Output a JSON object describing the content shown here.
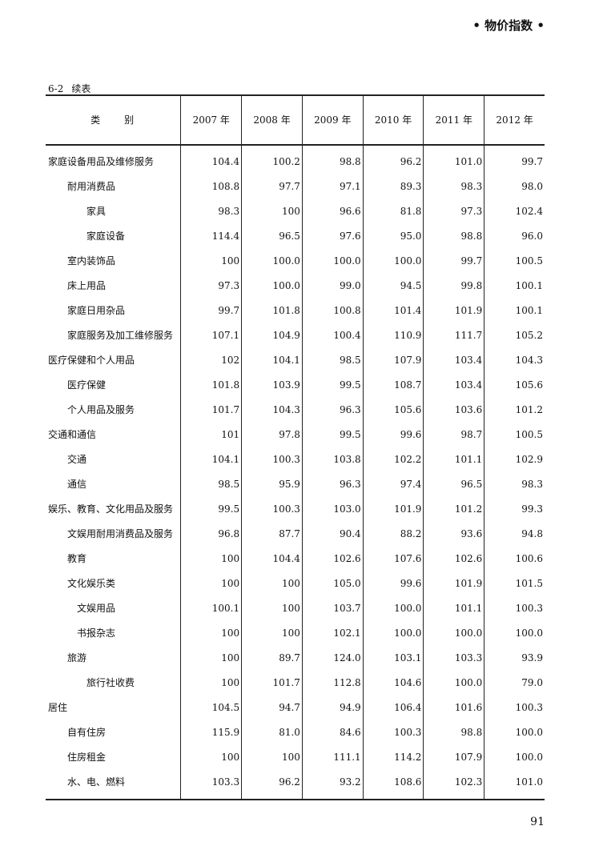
{
  "running_head": "•  物价指数  •",
  "table_number": "6-2",
  "table_continued": "续表",
  "header": {
    "category": "类　　别",
    "years": [
      "2007 年",
      "2008 年",
      "2009 年",
      "2010 年",
      "2011 年",
      "2012 年"
    ]
  },
  "rows": [
    {
      "name": "家庭设备用品及维修服务",
      "level": 0,
      "values": [
        "104.4",
        "100.2",
        "98.8",
        "96.2",
        "101.0",
        "99.7"
      ]
    },
    {
      "name": "耐用消费品",
      "level": 1,
      "values": [
        "108.8",
        "97.7",
        "97.1",
        "89.3",
        "98.3",
        "98.0"
      ]
    },
    {
      "name": "家具",
      "level": 2,
      "values": [
        "98.3",
        "100",
        "96.6",
        "81.8",
        "97.3",
        "102.4"
      ]
    },
    {
      "name": "家庭设备",
      "level": 2,
      "values": [
        "114.4",
        "96.5",
        "97.6",
        "95.0",
        "98.8",
        "96.0"
      ]
    },
    {
      "name": "室内装饰品",
      "level": 1,
      "values": [
        "100",
        "100.0",
        "100.0",
        "100.0",
        "99.7",
        "100.5"
      ]
    },
    {
      "name": "床上用品",
      "level": 1,
      "values": [
        "97.3",
        "100.0",
        "99.0",
        "94.5",
        "99.8",
        "100.1"
      ]
    },
    {
      "name": "家庭日用杂品",
      "level": 1,
      "values": [
        "99.7",
        "101.8",
        "100.8",
        "101.4",
        "101.9",
        "100.1"
      ]
    },
    {
      "name": "家庭服务及加工维修服务",
      "level": 1,
      "values": [
        "107.1",
        "104.9",
        "100.4",
        "110.9",
        "111.7",
        "105.2"
      ]
    },
    {
      "name": "医疗保健和个人用品",
      "level": 0,
      "values": [
        "102",
        "104.1",
        "98.5",
        "107.9",
        "103.4",
        "104.3"
      ]
    },
    {
      "name": "医疗保健",
      "level": 1,
      "values": [
        "101.8",
        "103.9",
        "99.5",
        "108.7",
        "103.4",
        "105.6"
      ]
    },
    {
      "name": "个人用品及服务",
      "level": 1,
      "values": [
        "101.7",
        "104.3",
        "96.3",
        "105.6",
        "103.6",
        "101.2"
      ]
    },
    {
      "name": "交通和通信",
      "level": 0,
      "values": [
        "101",
        "97.8",
        "99.5",
        "99.6",
        "98.7",
        "100.5"
      ]
    },
    {
      "name": "交通",
      "level": 1,
      "values": [
        "104.1",
        "100.3",
        "103.8",
        "102.2",
        "101.1",
        "102.9"
      ]
    },
    {
      "name": "通信",
      "level": 1,
      "values": [
        "98.5",
        "95.9",
        "96.3",
        "97.4",
        "96.5",
        "98.3"
      ]
    },
    {
      "name": "娱乐、教育、文化用品及服务",
      "level": 0,
      "values": [
        "99.5",
        "100.3",
        "103.0",
        "101.9",
        "101.2",
        "99.3"
      ]
    },
    {
      "name": "文娱用耐用消费品及服务",
      "level": 1,
      "values": [
        "96.8",
        "87.7",
        "90.4",
        "88.2",
        "93.6",
        "94.8"
      ]
    },
    {
      "name": "教育",
      "level": 1,
      "values": [
        "100",
        "104.4",
        "102.6",
        "107.6",
        "102.6",
        "100.6"
      ]
    },
    {
      "name": "文化娱乐类",
      "level": 1,
      "values": [
        "100",
        "100",
        "105.0",
        "99.6",
        "101.9",
        "101.5"
      ]
    },
    {
      "name": "文娱用品",
      "level": 15,
      "values": [
        "100.1",
        "100",
        "103.7",
        "100.0",
        "101.1",
        "100.3"
      ]
    },
    {
      "name": "书报杂志",
      "level": 15,
      "values": [
        "100",
        "100",
        "102.1",
        "100.0",
        "100.0",
        "100.0"
      ]
    },
    {
      "name": "旅游",
      "level": 1,
      "values": [
        "100",
        "89.7",
        "124.0",
        "103.1",
        "103.3",
        "93.9"
      ]
    },
    {
      "name": "旅行社收费",
      "level": 2,
      "values": [
        "100",
        "101.7",
        "112.8",
        "104.6",
        "100.0",
        "79.0"
      ]
    },
    {
      "name": "居住",
      "level": 0,
      "values": [
        "104.5",
        "94.7",
        "94.9",
        "106.4",
        "101.6",
        "100.3"
      ]
    },
    {
      "name": "自有住房",
      "level": 1,
      "values": [
        "115.9",
        "81.0",
        "84.6",
        "100.3",
        "98.8",
        "100.0"
      ]
    },
    {
      "name": "住房租金",
      "level": 1,
      "values": [
        "100",
        "100",
        "111.1",
        "114.2",
        "107.9",
        "100.0"
      ]
    },
    {
      "name": "水、电、燃料",
      "level": 1,
      "values": [
        "103.3",
        "96.2",
        "93.2",
        "108.6",
        "102.3",
        "101.0"
      ]
    }
  ],
  "page_number": "91"
}
